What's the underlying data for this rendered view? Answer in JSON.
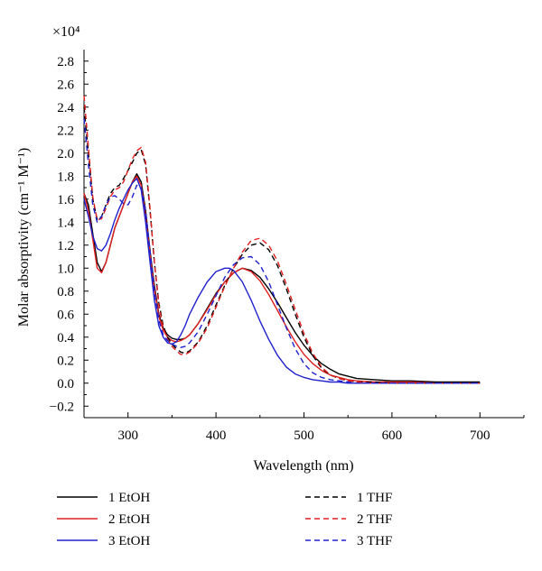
{
  "chart_data": {
    "type": "line",
    "title": "",
    "xlabel": "Wavelength (nm)",
    "ylabel": "Molar absorptivity (cm⁻¹ M⁻¹)",
    "y_multiplier_label": "×10⁴",
    "xlim": [
      250,
      750
    ],
    "ylim": [
      -0.3,
      2.9
    ],
    "x_ticks": [
      300,
      400,
      500,
      600,
      700
    ],
    "x_tick_labels": [
      "300",
      "400",
      "500",
      "600",
      "700"
    ],
    "y_ticks": [
      -0.2,
      0.0,
      0.2,
      0.4,
      0.6,
      0.8,
      1.0,
      1.2,
      1.4,
      1.6,
      1.8,
      2.0,
      2.2,
      2.4,
      2.6,
      2.8
    ],
    "y_tick_labels": [
      "−0.2",
      "0.0",
      "0.2",
      "0.4",
      "0.6",
      "0.8",
      "1.0",
      "1.2",
      "1.4",
      "1.6",
      "1.8",
      "2.0",
      "2.2",
      "2.4",
      "2.6",
      "2.8"
    ],
    "grid": false,
    "legend_position": "bottom",
    "series": [
      {
        "name": "1 EtOH",
        "color": "#000000",
        "dash": "solid",
        "x": [
          250,
          255,
          260,
          265,
          270,
          275,
          280,
          285,
          290,
          295,
          300,
          305,
          310,
          315,
          320,
          325,
          330,
          335,
          340,
          345,
          350,
          355,
          360,
          365,
          370,
          380,
          390,
          400,
          410,
          420,
          430,
          440,
          450,
          460,
          470,
          480,
          490,
          500,
          510,
          520,
          530,
          540,
          550,
          560,
          580,
          600,
          620,
          650,
          700
        ],
        "y": [
          1.65,
          1.55,
          1.3,
          1.05,
          0.97,
          1.05,
          1.2,
          1.35,
          1.45,
          1.55,
          1.65,
          1.75,
          1.82,
          1.75,
          1.5,
          1.15,
          0.85,
          0.6,
          0.48,
          0.42,
          0.39,
          0.38,
          0.38,
          0.39,
          0.42,
          0.52,
          0.65,
          0.78,
          0.88,
          0.96,
          1.0,
          0.98,
          0.92,
          0.82,
          0.7,
          0.57,
          0.44,
          0.33,
          0.24,
          0.17,
          0.12,
          0.08,
          0.06,
          0.04,
          0.03,
          0.02,
          0.02,
          0.01,
          0.01
        ]
      },
      {
        "name": "2 EtOH",
        "color": "#e02020",
        "dash": "solid",
        "x": [
          250,
          255,
          260,
          265,
          270,
          275,
          280,
          285,
          290,
          295,
          300,
          305,
          310,
          315,
          320,
          325,
          330,
          335,
          340,
          345,
          350,
          355,
          360,
          365,
          370,
          380,
          390,
          400,
          410,
          420,
          430,
          440,
          450,
          460,
          470,
          480,
          490,
          500,
          510,
          520,
          530,
          540,
          550,
          560,
          580,
          600,
          620,
          650,
          700
        ],
        "y": [
          1.65,
          1.5,
          1.25,
          1.0,
          0.96,
          1.05,
          1.2,
          1.35,
          1.45,
          1.55,
          1.65,
          1.75,
          1.8,
          1.72,
          1.45,
          1.12,
          0.82,
          0.58,
          0.46,
          0.4,
          0.37,
          0.36,
          0.37,
          0.39,
          0.42,
          0.52,
          0.64,
          0.77,
          0.88,
          0.96,
          1.0,
          0.97,
          0.89,
          0.77,
          0.63,
          0.49,
          0.36,
          0.25,
          0.17,
          0.11,
          0.07,
          0.05,
          0.03,
          0.02,
          0.01,
          0.01,
          0.01,
          0.0,
          0.0
        ]
      },
      {
        "name": "3 EtOH",
        "color": "#2020cc",
        "dash": "solid",
        "x": [
          250,
          255,
          260,
          265,
          270,
          275,
          280,
          285,
          290,
          295,
          300,
          305,
          310,
          315,
          320,
          325,
          330,
          335,
          340,
          345,
          350,
          355,
          360,
          365,
          370,
          380,
          390,
          400,
          410,
          415,
          420,
          430,
          440,
          450,
          460,
          470,
          480,
          490,
          500,
          510,
          520,
          530,
          540,
          550,
          560,
          580,
          600,
          650,
          700
        ],
        "y": [
          1.6,
          1.45,
          1.28,
          1.17,
          1.15,
          1.2,
          1.3,
          1.42,
          1.52,
          1.6,
          1.68,
          1.74,
          1.78,
          1.68,
          1.4,
          1.05,
          0.72,
          0.5,
          0.4,
          0.35,
          0.34,
          0.36,
          0.42,
          0.5,
          0.6,
          0.75,
          0.88,
          0.97,
          1.0,
          1.0,
          0.98,
          0.88,
          0.72,
          0.54,
          0.38,
          0.24,
          0.14,
          0.08,
          0.05,
          0.03,
          0.02,
          0.01,
          0.01,
          0.0,
          0.0,
          0.0,
          0.0,
          0.0,
          0.0
        ]
      },
      {
        "name": "1 THF",
        "color": "#000000",
        "dash": "dashed",
        "x": [
          250,
          255,
          260,
          265,
          270,
          275,
          280,
          285,
          290,
          295,
          300,
          305,
          310,
          315,
          320,
          325,
          330,
          335,
          340,
          345,
          350,
          355,
          360,
          365,
          370,
          380,
          390,
          400,
          410,
          420,
          430,
          440,
          450,
          460,
          470,
          480,
          490,
          500,
          510,
          520,
          530,
          540,
          550,
          560,
          580,
          600,
          650,
          700
        ],
        "y": [
          2.4,
          2.0,
          1.6,
          1.42,
          1.45,
          1.55,
          1.65,
          1.7,
          1.72,
          1.78,
          1.85,
          1.92,
          2.0,
          2.03,
          1.9,
          1.5,
          1.05,
          0.7,
          0.5,
          0.4,
          0.34,
          0.3,
          0.27,
          0.26,
          0.28,
          0.36,
          0.5,
          0.68,
          0.85,
          1.0,
          1.12,
          1.2,
          1.22,
          1.16,
          1.02,
          0.82,
          0.6,
          0.4,
          0.24,
          0.13,
          0.07,
          0.04,
          0.02,
          0.01,
          0.01,
          0.0,
          0.0,
          0.0
        ]
      },
      {
        "name": "2 THF",
        "color": "#e02020",
        "dash": "dashed",
        "x": [
          250,
          255,
          260,
          265,
          270,
          275,
          280,
          285,
          290,
          295,
          300,
          305,
          310,
          315,
          320,
          325,
          330,
          335,
          340,
          345,
          350,
          355,
          360,
          365,
          370,
          380,
          390,
          400,
          410,
          420,
          430,
          440,
          450,
          460,
          470,
          480,
          490,
          500,
          510,
          520,
          530,
          540,
          550,
          560,
          580,
          600,
          650,
          700
        ],
        "y": [
          2.5,
          2.05,
          1.62,
          1.42,
          1.43,
          1.52,
          1.62,
          1.68,
          1.7,
          1.75,
          1.85,
          1.95,
          2.02,
          2.05,
          1.92,
          1.52,
          1.05,
          0.68,
          0.48,
          0.38,
          0.32,
          0.28,
          0.25,
          0.25,
          0.27,
          0.35,
          0.48,
          0.66,
          0.84,
          1.0,
          1.14,
          1.24,
          1.26,
          1.2,
          1.06,
          0.86,
          0.64,
          0.43,
          0.26,
          0.14,
          0.07,
          0.04,
          0.02,
          0.01,
          0.0,
          0.0,
          0.0,
          0.0
        ]
      },
      {
        "name": "3 THF",
        "color": "#2020cc",
        "dash": "dashed",
        "x": [
          250,
          255,
          260,
          265,
          270,
          275,
          280,
          285,
          290,
          295,
          300,
          305,
          310,
          315,
          320,
          325,
          330,
          335,
          340,
          345,
          350,
          355,
          360,
          365,
          370,
          380,
          390,
          400,
          410,
          420,
          430,
          440,
          450,
          460,
          470,
          480,
          490,
          500,
          510,
          520,
          530,
          540,
          550,
          560,
          580,
          600,
          650,
          700
        ],
        "y": [
          2.3,
          1.9,
          1.55,
          1.4,
          1.45,
          1.55,
          1.62,
          1.63,
          1.6,
          1.56,
          1.55,
          1.62,
          1.72,
          1.7,
          1.5,
          1.15,
          0.8,
          0.55,
          0.42,
          0.37,
          0.34,
          0.32,
          0.31,
          0.32,
          0.35,
          0.45,
          0.6,
          0.76,
          0.92,
          1.03,
          1.09,
          1.1,
          1.03,
          0.88,
          0.68,
          0.48,
          0.3,
          0.17,
          0.09,
          0.05,
          0.03,
          0.02,
          0.01,
          0.0,
          0.0,
          0.0,
          0.0,
          0.0
        ]
      }
    ]
  }
}
